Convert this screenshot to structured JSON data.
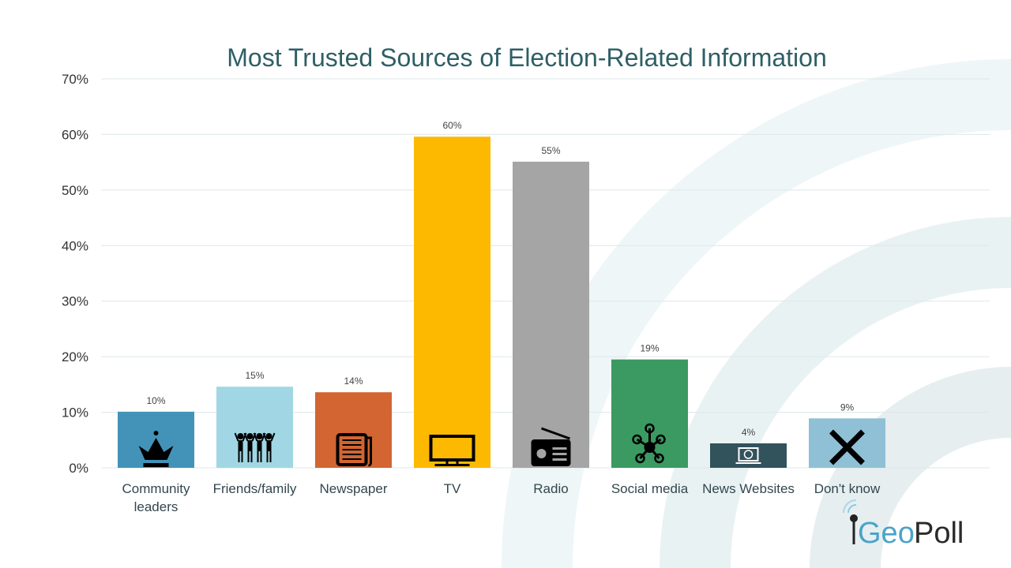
{
  "chart_data": {
    "type": "bar",
    "title": "Most Trusted Sources of Election-Related Information",
    "xlabel": "",
    "ylabel": "",
    "ylim": [
      0,
      70
    ],
    "yticks": [
      "0%",
      "10%",
      "20%",
      "30%",
      "40%",
      "50%",
      "60%",
      "70%"
    ],
    "grid": true,
    "categories": [
      [
        "Community",
        "leaders"
      ],
      [
        "Friends/family"
      ],
      [
        "Newspaper"
      ],
      [
        "TV"
      ],
      [
        "Radio"
      ],
      [
        "Social media"
      ],
      [
        "News Websites"
      ],
      [
        "Don't know"
      ]
    ],
    "values": [
      10.1,
      14.6,
      13.6,
      59.6,
      55.1,
      19.5,
      4.4,
      8.9
    ],
    "data_labels": [
      "10%",
      "15%",
      "14%",
      "60%",
      "55%",
      "19%",
      "4%",
      "9%"
    ],
    "colors": [
      "#4393b8",
      "#a1d7e4",
      "#d26531",
      "#fdb900",
      "#a5a5a5",
      "#3b9a62",
      "#32525c",
      "#8fc0d6"
    ],
    "icons": [
      "crown-icon",
      "people-icon",
      "newspaper-icon",
      "tv-icon",
      "radio-icon",
      "social-network-icon",
      "laptop-globe-icon",
      "x-icon"
    ]
  },
  "logo": {
    "text_geo": "Geo",
    "text_poll": "Poll"
  }
}
